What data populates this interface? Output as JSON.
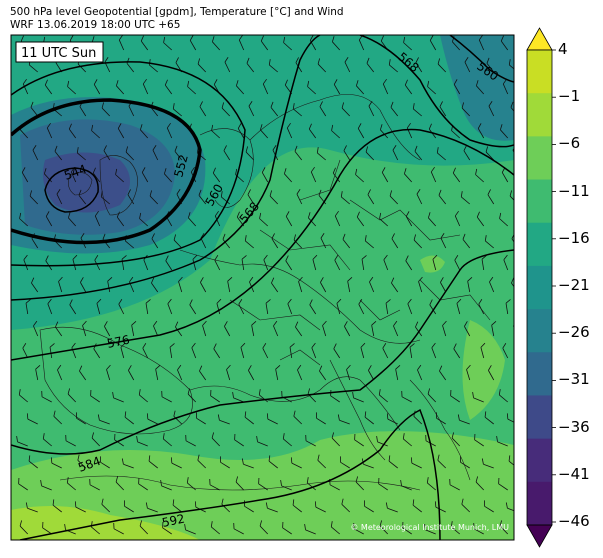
{
  "header": {
    "line1": "500 hPa level Geopotential [gpdm], Temperature [°C] and Wind",
    "line2": "WRF 13.06.2019 18:00 UTC +65"
  },
  "map": {
    "time_badge": "11 UTC Sun",
    "credit": "© Meteorological Institute Munich, LMU",
    "contours": [
      {
        "label": "544"
      },
      {
        "label": "552"
      },
      {
        "label": "560"
      },
      {
        "label": "568"
      },
      {
        "label": "576"
      },
      {
        "label": "584"
      },
      {
        "label": "592"
      },
      {
        "label": "568"
      },
      {
        "label": "560"
      }
    ]
  },
  "colorbar": {
    "ticks": [
      "4",
      "−1",
      "−6",
      "−11",
      "−16",
      "−21",
      "−26",
      "−31",
      "−36",
      "−41",
      "−46"
    ],
    "colors": [
      "#fde725",
      "#c9de24",
      "#a0da39",
      "#6ece58",
      "#3fbb70",
      "#22a884",
      "#1f948c",
      "#26828e",
      "#306a8e",
      "#3e4a89",
      "#472c7a",
      "#481a6c",
      "#440154"
    ]
  }
}
